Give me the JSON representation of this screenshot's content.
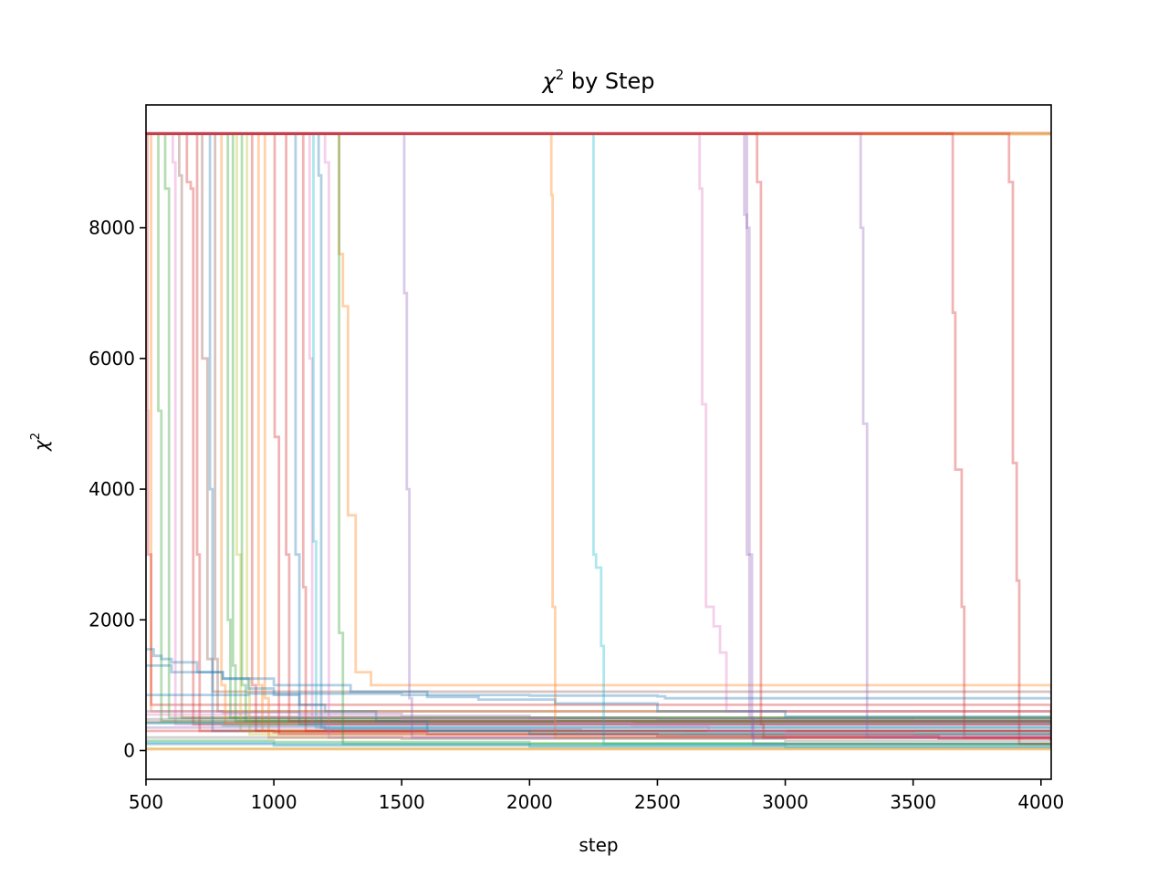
{
  "chart_data": {
    "type": "line",
    "title_symbol": "χ",
    "title_exponent": "2",
    "title_rest": " by Step",
    "xlabel": "step",
    "ylabel_symbol": "χ",
    "ylabel_exponent": "2",
    "xlim": [
      500,
      4040
    ],
    "ylim": [
      -440,
      9880
    ],
    "xticks": [
      500,
      1000,
      1500,
      2000,
      2500,
      3000,
      3500,
      4000
    ],
    "yticks": [
      0,
      2000,
      4000,
      6000,
      8000
    ],
    "grid": false,
    "legend": false,
    "line_alpha": 0.35,
    "colors": [
      "#1f77b4",
      "#ff7f0e",
      "#2ca02c",
      "#d62728",
      "#9467bd",
      "#8c564b",
      "#e377c2",
      "#7f7f7f",
      "#bcbd22",
      "#17becf"
    ],
    "series": [
      {
        "color_index": 3,
        "x": [
          500,
          4040
        ],
        "y": [
          9450,
          9450
        ]
      },
      {
        "color_index": 8,
        "x": [
          500,
          4040
        ],
        "y": [
          9440,
          9440
        ]
      },
      {
        "color_index": 1,
        "x": [
          500,
          520,
          520,
          4040
        ],
        "y": [
          9440,
          9440,
          600,
          480
        ]
      },
      {
        "color_index": 1,
        "x": [
          500,
          4040
        ],
        "y": [
          9430,
          9430
        ]
      },
      {
        "color_index": 2,
        "x": [
          500,
          545,
          548,
          560,
          4040
        ],
        "y": [
          9440,
          9440,
          5200,
          450,
          420
        ]
      },
      {
        "color_index": 3,
        "x": [
          500,
          505,
          508,
          520,
          4040
        ],
        "y": [
          9440,
          5200,
          3000,
          700,
          560
        ]
      },
      {
        "color_index": 2,
        "x": [
          500,
          570,
          575,
          590,
          4040
        ],
        "y": [
          9440,
          9440,
          8600,
          500,
          470
        ]
      },
      {
        "color_index": 6,
        "x": [
          500,
          600,
          605,
          615,
          4040
        ],
        "y": [
          9440,
          9440,
          9000,
          400,
          380
        ]
      },
      {
        "color_index": 5,
        "x": [
          500,
          625,
          630,
          640,
          4040
        ],
        "y": [
          9440,
          9440,
          8800,
          500,
          480
        ]
      },
      {
        "color_index": 3,
        "x": [
          500,
          640,
          660,
          675,
          685,
          4040
        ],
        "y": [
          9440,
          9440,
          8700,
          8600,
          400,
          150
        ]
      },
      {
        "color_index": 3,
        "x": [
          500,
          690,
          700,
          710,
          4040
        ],
        "y": [
          9440,
          9440,
          3000,
          300,
          150
        ]
      },
      {
        "color_index": 5,
        "x": [
          500,
          710,
          720,
          740,
          760,
          4040
        ],
        "y": [
          9440,
          9440,
          6000,
          1400,
          900,
          850
        ]
      },
      {
        "color_index": 0,
        "x": [
          500,
          740,
          750,
          760,
          4040
        ],
        "y": [
          9440,
          9440,
          4000,
          300,
          250
        ]
      },
      {
        "color_index": 5,
        "x": [
          500,
          765,
          770,
          780,
          4040
        ],
        "y": [
          9440,
          9440,
          1400,
          600,
          570
        ]
      },
      {
        "color_index": 1,
        "x": [
          500,
          790,
          795,
          810,
          4040
        ],
        "y": [
          9440,
          9440,
          1000,
          400,
          380
        ]
      },
      {
        "color_index": 2,
        "x": [
          500,
          815,
          820,
          830,
          4040
        ],
        "y": [
          9440,
          9440,
          2000,
          500,
          480
        ]
      },
      {
        "color_index": 2,
        "x": [
          500,
          835,
          840,
          850,
          4040
        ],
        "y": [
          9440,
          9440,
          1300,
          450,
          430
        ]
      },
      {
        "color_index": 8,
        "x": [
          500,
          850,
          855,
          870,
          4040
        ],
        "y": [
          9440,
          9440,
          3000,
          300,
          250
        ]
      },
      {
        "color_index": 2,
        "x": [
          500,
          870,
          875,
          890,
          4040
        ],
        "y": [
          9440,
          9440,
          1000,
          450,
          420
        ]
      },
      {
        "color_index": 8,
        "x": [
          500,
          890,
          895,
          905,
          4040
        ],
        "y": [
          9440,
          9440,
          1100,
          250,
          200
        ]
      },
      {
        "color_index": 3,
        "x": [
          500,
          910,
          915,
          930,
          4040
        ],
        "y": [
          9440,
          9440,
          1000,
          300,
          280
        ]
      },
      {
        "color_index": 1,
        "x": [
          500,
          935,
          940,
          955,
          4040
        ],
        "y": [
          9440,
          9440,
          1000,
          300,
          260
        ]
      },
      {
        "color_index": 1,
        "x": [
          500,
          960,
          965,
          980,
          4040
        ],
        "y": [
          9440,
          9440,
          800,
          200,
          170
        ]
      },
      {
        "color_index": 3,
        "x": [
          500,
          1000,
          1003,
          1010,
          1020,
          4040
        ],
        "y": [
          9440,
          9440,
          4800,
          4800,
          250,
          200
        ]
      },
      {
        "color_index": 3,
        "x": [
          500,
          1045,
          1048,
          1060,
          4040
        ],
        "y": [
          9440,
          9440,
          3000,
          450,
          420
        ]
      },
      {
        "color_index": 0,
        "x": [
          500,
          1080,
          1085,
          1100,
          4040
        ],
        "y": [
          9440,
          9440,
          3000,
          400,
          380
        ]
      },
      {
        "color_index": 3,
        "x": [
          500,
          1110,
          1115,
          1125,
          4040
        ],
        "y": [
          9440,
          9440,
          2500,
          300,
          250
        ]
      },
      {
        "color_index": 6,
        "x": [
          500,
          1130,
          1140,
          1150,
          4040
        ],
        "y": [
          9440,
          9440,
          6000,
          400,
          380
        ]
      },
      {
        "color_index": 9,
        "x": [
          500,
          1150,
          1155,
          1165,
          4040
        ],
        "y": [
          9440,
          9440,
          3200,
          350,
          300
        ]
      },
      {
        "color_index": 0,
        "x": [
          500,
          1170,
          1175,
          1185,
          4040
        ],
        "y": [
          9440,
          9440,
          8800,
          350,
          320
        ]
      },
      {
        "color_index": 6,
        "x": [
          500,
          1190,
          1200,
          1215,
          4040
        ],
        "y": [
          9440,
          9440,
          9000,
          200,
          170
        ]
      },
      {
        "color_index": 1,
        "x": [
          500,
          1230,
          1255,
          1270,
          1290,
          1320,
          1380,
          4040
        ],
        "y": [
          9440,
          9440,
          7600,
          6800,
          3600,
          1200,
          1000,
          950
        ]
      },
      {
        "color_index": 2,
        "x": [
          500,
          1250,
          1255,
          1270,
          4040
        ],
        "y": [
          9440,
          9440,
          1800,
          100,
          50
        ]
      },
      {
        "color_index": 4,
        "x": [
          500,
          1505,
          1510,
          1520,
          1530,
          1540,
          4040
        ],
        "y": [
          9440,
          9440,
          7000,
          4000,
          800,
          200,
          150
        ]
      },
      {
        "color_index": 1,
        "x": [
          500,
          2075,
          2085,
          2090,
          2100,
          4040
        ],
        "y": [
          9440,
          9440,
          8500,
          2200,
          200,
          100
        ]
      },
      {
        "color_index": 9,
        "x": [
          500,
          2245,
          2250,
          2260,
          2280,
          2290,
          4040
        ],
        "y": [
          9440,
          9440,
          3000,
          2800,
          1600,
          100,
          80
        ]
      },
      {
        "color_index": 6,
        "x": [
          500,
          2655,
          2665,
          2675,
          2690,
          2720,
          2745,
          2770,
          4040
        ],
        "y": [
          9440,
          9440,
          8600,
          5300,
          2200,
          1900,
          1500,
          600,
          500
        ]
      },
      {
        "color_index": 4,
        "x": [
          500,
          2830,
          2840,
          2850,
          2860,
          2875,
          4040
        ],
        "y": [
          9440,
          9440,
          8200,
          8000,
          500,
          100,
          80
        ]
      },
      {
        "color_index": 4,
        "x": [
          500,
          2840,
          2850,
          2870,
          4040
        ],
        "y": [
          9440,
          9440,
          3000,
          200,
          150
        ]
      },
      {
        "color_index": 3,
        "x": [
          500,
          2880,
          2890,
          2905,
          2915,
          4040
        ],
        "y": [
          9440,
          9440,
          8700,
          400,
          200,
          150
        ]
      },
      {
        "color_index": 4,
        "x": [
          500,
          3290,
          3295,
          3305,
          3320,
          4040
        ],
        "y": [
          9440,
          9440,
          8000,
          5000,
          200,
          150
        ]
      },
      {
        "color_index": 3,
        "x": [
          500,
          3640,
          3655,
          3665,
          3690,
          3700,
          4040
        ],
        "y": [
          9440,
          9440,
          6700,
          4300,
          2200,
          200,
          150
        ]
      },
      {
        "color_index": 3,
        "x": [
          500,
          3870,
          3875,
          3890,
          3905,
          3915,
          4040
        ],
        "y": [
          9440,
          9440,
          8700,
          4400,
          2600,
          100,
          80
        ]
      },
      {
        "color_index": 0,
        "x": [
          500,
          530,
          560,
          600,
          700,
          800,
          900,
          1000,
          1100,
          1200,
          1400,
          1600,
          2000,
          4040
        ],
        "y": [
          1550,
          1450,
          1400,
          1350,
          1200,
          1100,
          950,
          850,
          700,
          600,
          450,
          300,
          250,
          220
        ]
      },
      {
        "color_index": 0,
        "x": [
          500,
          700,
          900,
          1500,
          2000,
          2500,
          2530,
          4040
        ],
        "y": [
          850,
          850,
          870,
          850,
          840,
          830,
          800,
          800
        ]
      },
      {
        "color_index": 0,
        "x": [
          500,
          600,
          800,
          1000,
          1300,
          1600,
          1800,
          2100,
          2500,
          3000,
          4040
        ],
        "y": [
          1300,
          1200,
          1100,
          1000,
          900,
          820,
          780,
          720,
          600,
          520,
          500
        ]
      },
      {
        "color_index": 4,
        "x": [
          500,
          800,
          1100,
          1500,
          2000,
          2500,
          3000,
          3500,
          4040
        ],
        "y": [
          600,
          580,
          560,
          530,
          500,
          480,
          470,
          460,
          450
        ]
      },
      {
        "color_index": 7,
        "x": [
          500,
          4040
        ],
        "y": [
          480,
          480
        ]
      },
      {
        "color_index": 7,
        "x": [
          500,
          4040
        ],
        "y": [
          420,
          420
        ]
      },
      {
        "color_index": 5,
        "x": [
          500,
          4040
        ],
        "y": [
          440,
          440
        ]
      },
      {
        "color_index": 9,
        "x": [
          500,
          800,
          1200,
          1600,
          2000,
          2600,
          4040
        ],
        "y": [
          420,
          380,
          340,
          300,
          280,
          260,
          250
        ]
      },
      {
        "color_index": 6,
        "x": [
          500,
          900,
          1500,
          2100,
          2400,
          2700,
          3000,
          3500,
          4040
        ],
        "y": [
          550,
          520,
          480,
          420,
          380,
          300,
          260,
          220,
          200
        ]
      },
      {
        "color_index": 3,
        "x": [
          500,
          1000,
          1600,
          2500,
          3600,
          4040
        ],
        "y": [
          300,
          280,
          250,
          220,
          180,
          170
        ]
      },
      {
        "color_index": 2,
        "x": [
          500,
          1000,
          2000,
          3000,
          4040
        ],
        "y": [
          150,
          130,
          110,
          100,
          90
        ]
      },
      {
        "color_index": 9,
        "x": [
          500,
          1000,
          2000,
          3000,
          4040
        ],
        "y": [
          120,
          100,
          80,
          60,
          50
        ]
      },
      {
        "color_index": 0,
        "x": [
          500,
          1000,
          2000,
          3000,
          4040
        ],
        "y": [
          100,
          80,
          60,
          50,
          40
        ]
      },
      {
        "color_index": 8,
        "x": [
          500,
          4040
        ],
        "y": [
          30,
          30
        ]
      },
      {
        "color_index": 1,
        "x": [
          500,
          4040
        ],
        "y": [
          20,
          20
        ]
      },
      {
        "color_index": 7,
        "x": [
          500,
          1500,
          3000,
          4040
        ],
        "y": [
          200,
          180,
          150,
          140
        ]
      },
      {
        "color_index": 4,
        "x": [
          500,
          1200,
          2200,
          4040
        ],
        "y": [
          350,
          320,
          300,
          290
        ]
      }
    ]
  }
}
